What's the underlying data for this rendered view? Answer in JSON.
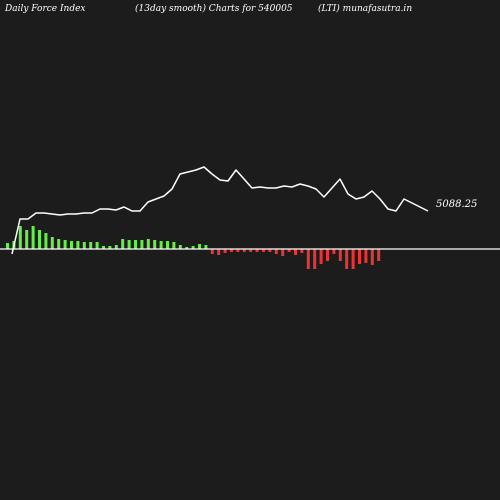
{
  "header": {
    "left": "Daily Force  Index",
    "center": "(13day smooth) Charts for 540005",
    "right": "(LTI) munafasutra.in"
  },
  "chart_data": {
    "type": "bar",
    "series": [
      {
        "name": "",
        "kind": "line",
        "values": [
          -5,
          30,
          30,
          36,
          36,
          35,
          34,
          35,
          35,
          36,
          36,
          40,
          40,
          39,
          42,
          38,
          38,
          47,
          50,
          53,
          60,
          75,
          77,
          79,
          82,
          75,
          69,
          68,
          79,
          70,
          61,
          62,
          61,
          61,
          63,
          62,
          65,
          63,
          60,
          52,
          61,
          70,
          55,
          50,
          52,
          58,
          50,
          40,
          38,
          50,
          46,
          42,
          38
        ]
      },
      {
        "name": "",
        "kind": "bar",
        "values": [
          6,
          8,
          23,
          19,
          23,
          19,
          16,
          12,
          10,
          9,
          8,
          8,
          7,
          7,
          7,
          3,
          3,
          4,
          10,
          9,
          9,
          9,
          10,
          9,
          8,
          8,
          7,
          4,
          2,
          3,
          5,
          4,
          -5,
          -6,
          -4,
          -3,
          -3,
          -3,
          -3,
          -3,
          -3,
          -3,
          -5,
          -7,
          -3,
          -6,
          -4,
          -20,
          -20,
          -15,
          -12,
          -5,
          -12,
          -20,
          -20,
          -15,
          -14,
          -16,
          -12
        ]
      }
    ],
    "last_value_label": "5088.25",
    "colors": {
      "line": "#ffffff",
      "positive_bar": "#66ee44",
      "negative_bar": "#ee3333",
      "zero_line": "#ffffff",
      "background": "#1c1c1c"
    },
    "ylim": [
      -40,
      100
    ]
  }
}
